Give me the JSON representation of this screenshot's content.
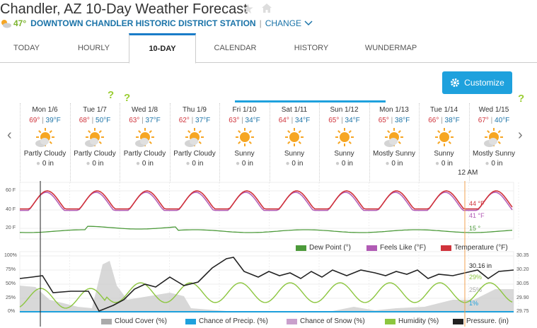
{
  "header": {
    "title": "Chandler, AZ 10-Day Weather Forecast",
    "current_temp": "47°",
    "station": "DOWNTOWN CHANDLER HISTORIC DISTRICT STATION",
    "separator": "|",
    "change_label": "CHANGE"
  },
  "tabs": [
    {
      "label": "TODAY"
    },
    {
      "label": "HOURLY"
    },
    {
      "label": "10-DAY",
      "active": true
    },
    {
      "label": "CALENDAR"
    },
    {
      "label": "HISTORY"
    },
    {
      "label": "WUNDERMAP"
    }
  ],
  "customize_label": "Customize",
  "days": [
    {
      "name": "Mon 1/6",
      "hi": "69°",
      "lo": "39°F",
      "cond": "Partly Cloudy",
      "precip": "0 in",
      "icon": "partly-cloudy-icon"
    },
    {
      "name": "Tue 1/7",
      "hi": "68°",
      "lo": "50°F",
      "cond": "Partly Cloudy",
      "precip": "0 in",
      "icon": "partly-cloudy-icon"
    },
    {
      "name": "Wed 1/8",
      "hi": "63°",
      "lo": "37°F",
      "cond": "Partly Cloudy",
      "precip": "0 in",
      "icon": "partly-cloudy-icon"
    },
    {
      "name": "Thu 1/9",
      "hi": "62°",
      "lo": "37°F",
      "cond": "Partly Cloudy",
      "precip": "0 in",
      "icon": "partly-cloudy-icon"
    },
    {
      "name": "Fri 1/10",
      "hi": "63°",
      "lo": "34°F",
      "cond": "Sunny",
      "precip": "0 in",
      "icon": "sunny-icon"
    },
    {
      "name": "Sat 1/11",
      "hi": "64°",
      "lo": "34°F",
      "cond": "Sunny",
      "precip": "0 in",
      "icon": "sunny-icon"
    },
    {
      "name": "Sun 1/12",
      "hi": "65°",
      "lo": "34°F",
      "cond": "Sunny",
      "precip": "0 in",
      "icon": "sunny-icon"
    },
    {
      "name": "Mon 1/13",
      "hi": "65°",
      "lo": "38°F",
      "cond": "Mostly Sunny",
      "precip": "0 in",
      "icon": "mostly-sunny-icon"
    },
    {
      "name": "Tue 1/14",
      "hi": "66°",
      "lo": "38°F",
      "cond": "Sunny",
      "precip": "0 in",
      "icon": "sunny-icon"
    },
    {
      "name": "Wed 1/15",
      "hi": "67°",
      "lo": "40°F",
      "cond": "Mostly Sunny",
      "precip": "0 in",
      "icon": "mostly-sunny-icon"
    }
  ],
  "hour_marker": "12 AM",
  "chart1": {
    "y_ticks": [
      "60 F",
      "40 F",
      "20 F"
    ],
    "temp_now": "44 °F",
    "feels_now": "41 °F",
    "dew_now": "15 °",
    "legend": [
      "Dew Point (°)",
      "Feels Like (°F)",
      "Temperature (°F)"
    ]
  },
  "chart2": {
    "y_ticks_left": [
      "100%",
      "75%",
      "50%",
      "25%",
      "0%"
    ],
    "y_ticks_right": [
      "30.35",
      "30.20",
      "30.05",
      "29.90",
      "29.75"
    ],
    "pressure_now": "30.16 in",
    "humidity_now": "29%",
    "cloud_now": "25%",
    "precip_now": "1%",
    "legend": [
      "Cloud Cover (%)",
      "Chance of Precip. (%)",
      "Chance of Snow (%)",
      "Humidity (%)",
      "Pressure. (in)"
    ]
  },
  "colors": {
    "temperature": "#d0333b",
    "feels_like": "#b15bb5",
    "dew_point": "#4c9a3a",
    "cloud_cover": "#aaaaaa",
    "precip": "#1ea1dd",
    "snow": "#c9a0cc",
    "humidity": "#8cc63f",
    "pressure": "#222222",
    "accent": "#1ea1dd"
  }
}
